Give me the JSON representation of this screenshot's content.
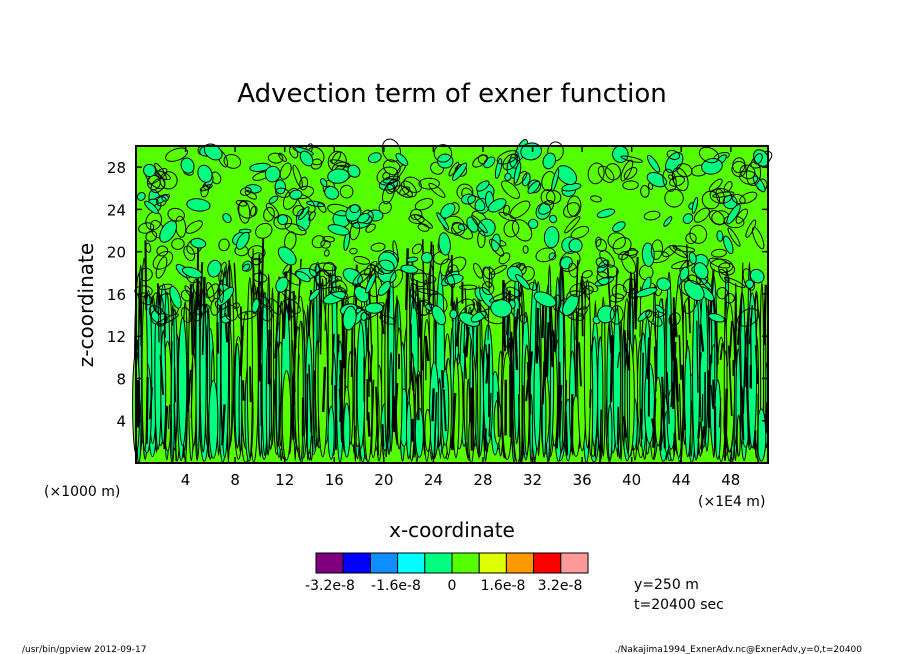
{
  "chart_data": {
    "type": "heatmap",
    "title": "Advection term of exner function",
    "xlabel": "x-coordinate",
    "ylabel": "z-coordinate",
    "x_unit_left": "(×1000 m)",
    "x_unit_right": "(×1E4 m)",
    "x_ticks": [
      "4",
      "8",
      "12",
      "16",
      "20",
      "24",
      "28",
      "32",
      "36",
      "40",
      "44",
      "48"
    ],
    "y_ticks": [
      "4",
      "8",
      "12",
      "16",
      "20",
      "24",
      "28"
    ],
    "xlim": [
      0,
      51
    ],
    "ylim": [
      0,
      30
    ],
    "colorbar": {
      "colors": [
        "#7f007f",
        "#0000ff",
        "#0f8fff",
        "#00ffff",
        "#00ff7f",
        "#55ff00",
        "#ddff00",
        "#ff9900",
        "#ff0000",
        "#ff9a9a"
      ],
      "labels": [
        "-3.2e-8",
        "-1.6e-8",
        "0",
        "1.6e-8",
        "3.2e-8"
      ]
    },
    "field_colors": {
      "upper": "#55ff00",
      "lower": "#00ff7f",
      "contour": "#000000"
    },
    "annotation": {
      "y": "y=250 m",
      "t": "t=20400 sec"
    }
  },
  "footer": {
    "left": "/usr/bin/gpview   2012-09-17",
    "right": "./Nakajima1994_ExnerAdv.nc@ExnerAdv,y=0,t=20400"
  }
}
